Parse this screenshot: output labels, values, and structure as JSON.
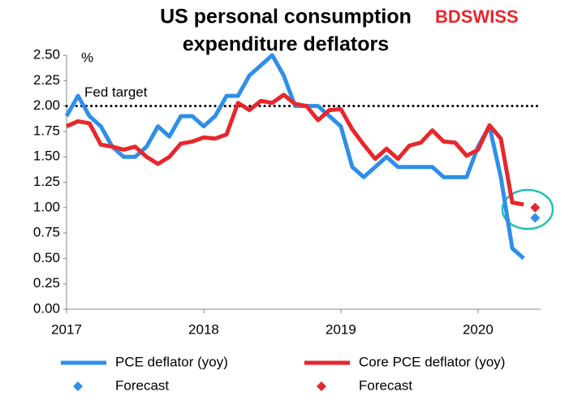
{
  "chart_data": {
    "type": "line",
    "title": [
      "US personal consumption",
      "expenditure deflators"
    ],
    "logo": "BDSWISS",
    "y_unit": "%",
    "categories": [
      "2017",
      null,
      null,
      null,
      null,
      null,
      null,
      null,
      null,
      null,
      null,
      null,
      "2018",
      null,
      null,
      null,
      null,
      null,
      null,
      null,
      null,
      null,
      null,
      null,
      "2019",
      null,
      null,
      null,
      null,
      null,
      null,
      null,
      null,
      null,
      null,
      null,
      "2020",
      null,
      null,
      null,
      null,
      null
    ],
    "series": [
      {
        "name": "PCE deflator (yoy)",
        "color": "#2e8fe8",
        "values": [
          1.9,
          2.1,
          1.9,
          1.8,
          1.6,
          1.5,
          1.5,
          1.6,
          1.8,
          1.7,
          1.9,
          1.9,
          1.8,
          1.9,
          2.1,
          2.1,
          2.3,
          2.4,
          2.5,
          2.3,
          2.0,
          2.0,
          2.0,
          1.9,
          1.8,
          1.4,
          1.3,
          1.4,
          1.5,
          1.4,
          1.4,
          1.4,
          1.4,
          1.3,
          1.3,
          1.3,
          1.6,
          1.8,
          1.3,
          0.6,
          0.5,
          null
        ]
      },
      {
        "name": "Core PCE deflator (yoy)",
        "color": "#e8262c",
        "values": [
          1.8,
          1.85,
          1.83,
          1.62,
          1.6,
          1.57,
          1.6,
          1.5,
          1.43,
          1.5,
          1.63,
          1.65,
          1.69,
          1.68,
          1.72,
          2.03,
          1.96,
          2.05,
          2.03,
          2.11,
          2.02,
          2.0,
          1.86,
          1.96,
          1.97,
          1.77,
          1.62,
          1.48,
          1.58,
          1.48,
          1.61,
          1.64,
          1.76,
          1.65,
          1.64,
          1.51,
          1.57,
          1.81,
          1.68,
          1.05,
          1.03,
          null
        ]
      },
      {
        "name": "Forecast",
        "color": "#2e8fe8",
        "marker": "diamond",
        "values": [
          null,
          null,
          null,
          null,
          null,
          null,
          null,
          null,
          null,
          null,
          null,
          null,
          null,
          null,
          null,
          null,
          null,
          null,
          null,
          null,
          null,
          null,
          null,
          null,
          null,
          null,
          null,
          null,
          null,
          null,
          null,
          null,
          null,
          null,
          null,
          null,
          null,
          null,
          null,
          null,
          null,
          0.9
        ]
      },
      {
        "name": "Forecast",
        "color": "#e8262c",
        "marker": "diamond",
        "values": [
          null,
          null,
          null,
          null,
          null,
          null,
          null,
          null,
          null,
          null,
          null,
          null,
          null,
          null,
          null,
          null,
          null,
          null,
          null,
          null,
          null,
          null,
          null,
          null,
          null,
          null,
          null,
          null,
          null,
          null,
          null,
          null,
          null,
          null,
          null,
          null,
          null,
          null,
          null,
          null,
          null,
          1.0
        ]
      }
    ],
    "reference_line": {
      "value": 2.0,
      "label": "Fed target"
    },
    "ylim": [
      0,
      2.5
    ],
    "yticks": [
      {
        "value": 0,
        "label": "0.00"
      },
      {
        "value": 0.25,
        "label": "0.25"
      },
      {
        "value": 0.5,
        "label": "0.50"
      },
      {
        "value": 0.75,
        "label": "0.75"
      },
      {
        "value": 1.0,
        "label": "1.00"
      },
      {
        "value": 1.25,
        "label": "1.25"
      },
      {
        "value": 1.5,
        "label": "1.50"
      },
      {
        "value": 1.75,
        "label": "1.75"
      },
      {
        "value": 2.0,
        "label": "2.00"
      },
      {
        "value": 2.25,
        "label": "2.25"
      },
      {
        "value": 2.5,
        "label": "2.50"
      }
    ],
    "grid": false
  }
}
